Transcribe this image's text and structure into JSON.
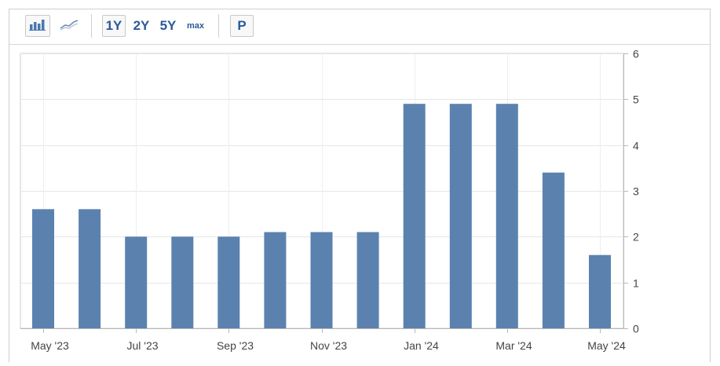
{
  "toolbar": {
    "bar_chart_icon": "bar-chart-icon",
    "line_chart_icon": "line-chart-icon",
    "ranges": [
      "1Y",
      "2Y",
      "5Y",
      "max"
    ],
    "active_range": "1Y",
    "p_label": "P"
  },
  "colors": {
    "bar": "#5b82af",
    "grid": "#e6e6e6",
    "axis": "#b8b8b8",
    "text": "#444444"
  },
  "chart_data": {
    "type": "bar",
    "categories": [
      "May '23",
      "Jun '23",
      "Jul '23",
      "Aug '23",
      "Sep '23",
      "Oct '23",
      "Nov '23",
      "Dec '23",
      "Jan '24",
      "Feb '24",
      "Mar '24",
      "Apr '24",
      "May '24"
    ],
    "values": [
      2.6,
      2.6,
      2.0,
      2.0,
      2.0,
      2.1,
      2.1,
      2.1,
      4.9,
      4.9,
      4.9,
      3.4,
      1.6
    ],
    "x_tick_labels": [
      "May '23",
      "Jul '23",
      "Sep '23",
      "Nov '23",
      "Jan '24",
      "Mar '24",
      "May '24"
    ],
    "x_tick_indices": [
      0,
      2,
      4,
      6,
      8,
      10,
      12
    ],
    "y_ticks": [
      0,
      1,
      2,
      3,
      4,
      5,
      6
    ],
    "ylim": [
      0,
      6
    ],
    "y_axis_side": "right",
    "grid": true,
    "legend": "none"
  }
}
